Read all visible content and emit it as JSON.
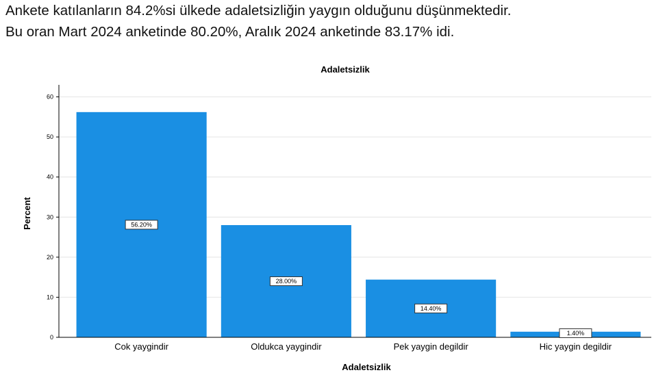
{
  "summary": {
    "line1": "Ankete katılanların 84.2%si ülkede adaletsizliğin yaygın olduğunu düşünmektedir.",
    "line2": "Bu oran Mart 2024 anketinde 80.20%, Aralık 2024 anketinde 83.17% idi."
  },
  "chart_data": {
    "type": "bar",
    "title": "Adaletsizlik",
    "xlabel": "Adaletsizlik",
    "ylabel": "Percent",
    "categories": [
      "Cok yaygindir",
      "Oldukca yaygindir",
      "Pek yaygin degildir",
      "Hic yaygin degildir"
    ],
    "values": [
      56.2,
      28.0,
      14.4,
      1.4
    ],
    "data_labels": [
      "56.20%",
      "28.00%",
      "14.40%",
      "1.40%"
    ],
    "ylim": [
      0,
      63
    ],
    "yticks": [
      "0",
      "10",
      "20",
      "30",
      "40",
      "50",
      "60"
    ],
    "grid": true,
    "legend": "none",
    "bar_color": "#1a8fe3",
    "grid_color": "#e4e4e4"
  }
}
